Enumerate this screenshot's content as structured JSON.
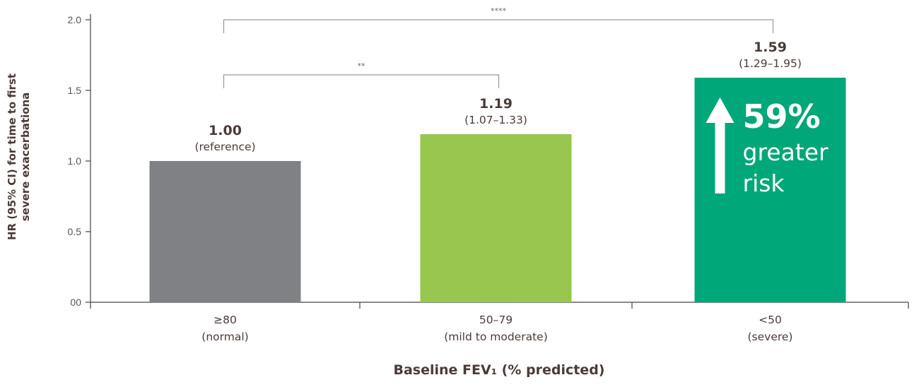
{
  "chart_data": {
    "type": "bar",
    "xlabel": "Baseline FEV₁ (% predicted)",
    "ylabel": [
      "HR (95% CI) for time to first",
      "severe exacerbationa"
    ],
    "ylim": [
      0,
      2.0
    ],
    "yticks": [
      {
        "value": 0,
        "label": "00"
      },
      {
        "value": 0.5,
        "label": "0.5"
      },
      {
        "value": 1.0,
        "label": "1.0"
      },
      {
        "value": 1.5,
        "label": "1.5"
      },
      {
        "value": 2.0,
        "label": "2.0"
      }
    ],
    "categories": [
      {
        "line1": "≥80",
        "line2": "(normal)"
      },
      {
        "line1": "50–79",
        "line2": "(mild to moderate)"
      },
      {
        "line1": "<50",
        "line2": "(severe)"
      }
    ],
    "values": [
      1.0,
      1.19,
      1.59
    ],
    "value_labels": [
      "1.00",
      "1.19",
      "1.59"
    ],
    "ci_labels": [
      "(reference)",
      "(1.07–1.33)",
      "(1.29–1.95)"
    ],
    "colors": [
      "#808184",
      "#97c74e",
      "#00a779"
    ],
    "significance": [
      {
        "from": 0,
        "to": 1,
        "label": "**"
      },
      {
        "from": 0,
        "to": 2,
        "label": "****"
      }
    ],
    "callout": {
      "percent": "59%",
      "line1": "greater",
      "line2": "risk"
    },
    "grid": false
  }
}
